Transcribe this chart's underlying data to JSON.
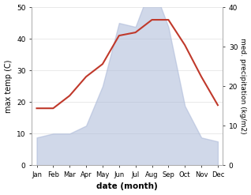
{
  "months": [
    "Jan",
    "Feb",
    "Mar",
    "Apr",
    "May",
    "Jun",
    "Jul",
    "Aug",
    "Sep",
    "Oct",
    "Nov",
    "Dec"
  ],
  "month_indices": [
    0,
    1,
    2,
    3,
    4,
    5,
    6,
    7,
    8,
    9,
    10,
    11
  ],
  "temperature": [
    18,
    18,
    22,
    28,
    32,
    41,
    42,
    46,
    46,
    38,
    28,
    19
  ],
  "precipitation": [
    7,
    8,
    8,
    10,
    20,
    36,
    35,
    46,
    35,
    15,
    7,
    6
  ],
  "temp_color": "#c0392b",
  "precip_fill_color": "#aab8d8",
  "precip_alpha": 0.55,
  "temp_ylim": [
    0,
    50
  ],
  "precip_ylim": [
    0,
    40
  ],
  "temp_yticks": [
    0,
    10,
    20,
    30,
    40,
    50
  ],
  "precip_yticks": [
    0,
    10,
    20,
    30,
    40
  ],
  "xlabel": "date (month)",
  "ylabel_left": "max temp (C)",
  "ylabel_right": "med. precipitation (kg/m2)",
  "figsize": [
    3.18,
    2.47
  ],
  "dpi": 100,
  "bg_color": "#ffffff",
  "spine_color": "#aaaaaa"
}
